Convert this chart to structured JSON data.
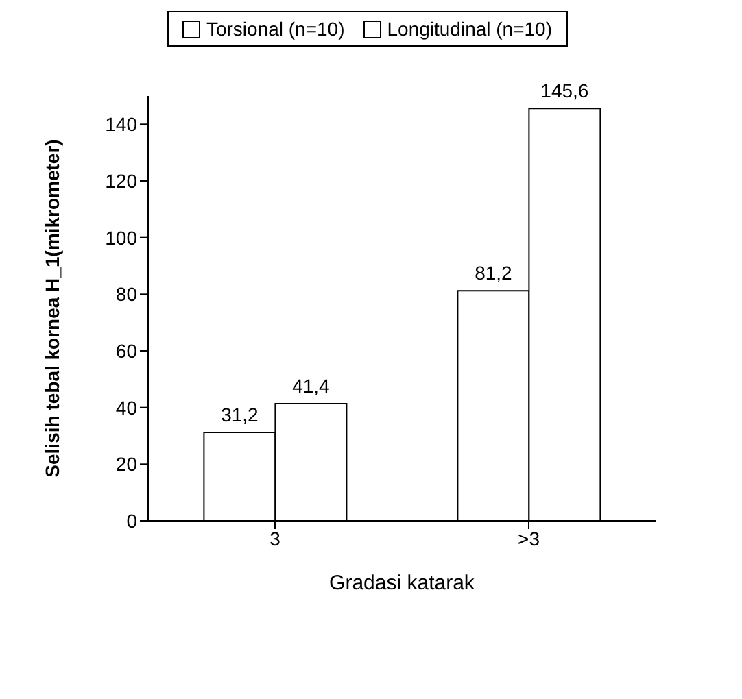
{
  "chart_data": {
    "type": "bar",
    "xlabel": "Gradasi katarak",
    "ylabel": "Selisih tebal kornea H_1(mikrometer)",
    "categories": [
      "3",
      ">3"
    ],
    "series": [
      {
        "name": "Torsional (n=10)",
        "color": "#ffffff",
        "values": [
          31.2,
          81.2
        ],
        "value_labels": [
          "31,2",
          "81,2"
        ]
      },
      {
        "name": "Longitudinal (n=10)",
        "color": "#ffffff",
        "values": [
          41.4,
          145.6
        ],
        "value_labels": [
          "41,4",
          "145,6"
        ]
      }
    ],
    "ylim": [
      0,
      150
    ],
    "yticks": [
      0,
      20,
      40,
      60,
      80,
      100,
      120,
      140
    ],
    "grid": false,
    "legend": "top"
  }
}
